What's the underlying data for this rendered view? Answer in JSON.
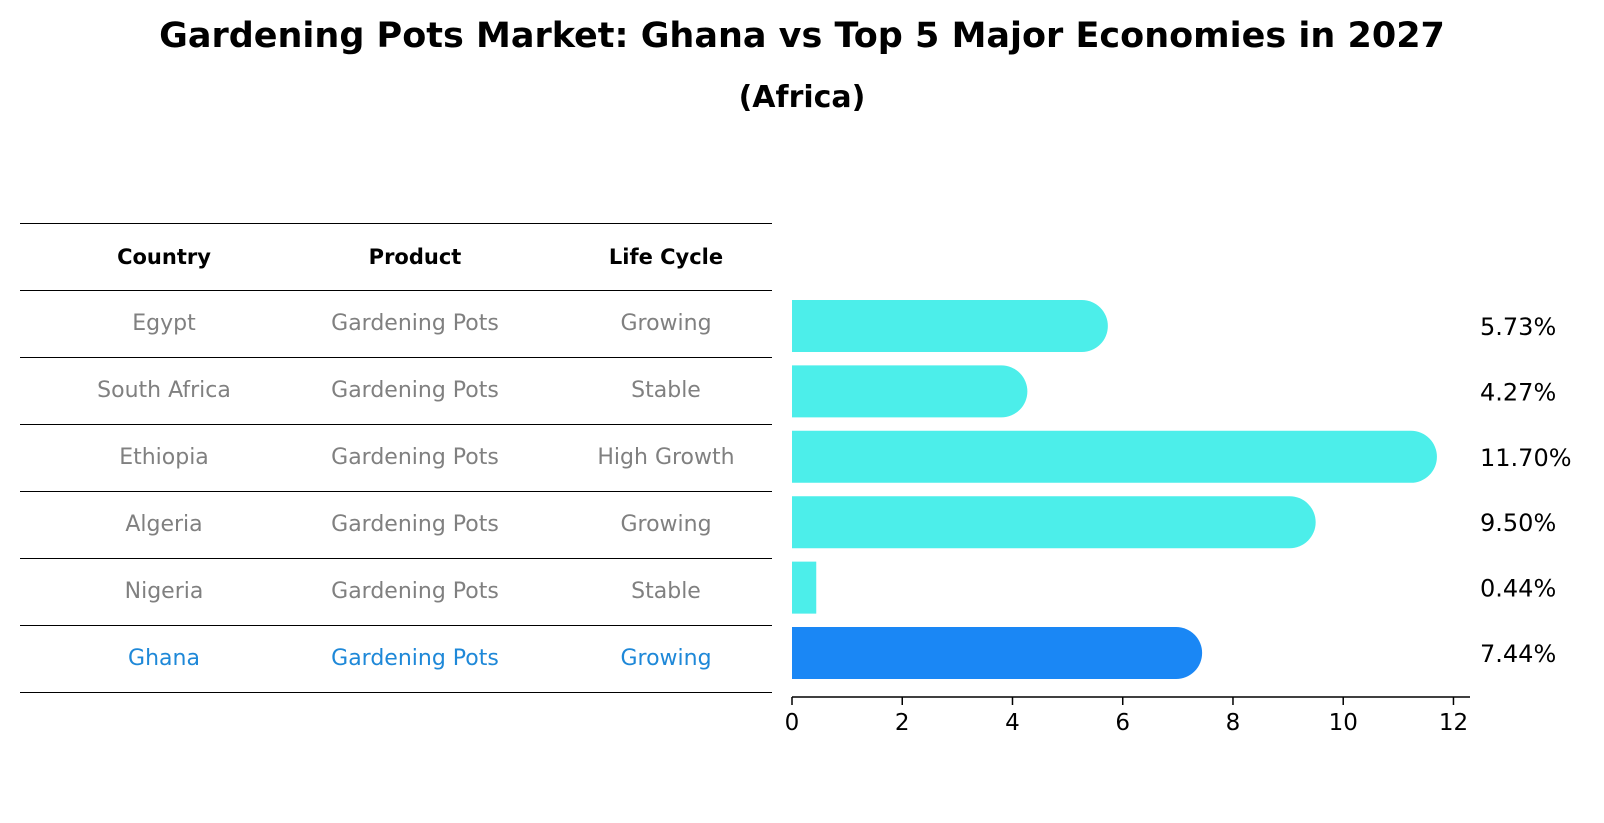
{
  "title": "Gardening Pots Market: Ghana vs Top 5 Major Economies in 2027",
  "subtitle": "(Africa)",
  "table": {
    "headers": [
      "Country",
      "Product",
      "Life Cycle"
    ],
    "rows": [
      {
        "country": "Egypt",
        "product": "Gardening Pots",
        "life_cycle": "Growing"
      },
      {
        "country": "South Africa",
        "product": "Gardening Pots",
        "life_cycle": "Stable"
      },
      {
        "country": "Ethiopia",
        "product": "Gardening Pots",
        "life_cycle": "High Growth"
      },
      {
        "country": "Algeria",
        "product": "Gardening Pots",
        "life_cycle": "Growing"
      },
      {
        "country": "Nigeria",
        "product": "Gardening Pots",
        "life_cycle": "Stable"
      },
      {
        "country": "Ghana",
        "product": "Gardening Pots",
        "life_cycle": "Growing"
      }
    ]
  },
  "chart_data": {
    "type": "bar",
    "orientation": "horizontal",
    "categories": [
      "Egypt",
      "South Africa",
      "Ethiopia",
      "Algeria",
      "Nigeria",
      "Ghana"
    ],
    "values": [
      5.73,
      4.27,
      11.7,
      9.5,
      0.44,
      7.44
    ],
    "value_labels": [
      "5.73%",
      "4.27%",
      "11.70%",
      "9.50%",
      "0.44%",
      "7.44%"
    ],
    "xlim": [
      0,
      12.3
    ],
    "xticks": [
      0,
      2,
      4,
      6,
      8,
      10,
      12
    ],
    "highlight": "Ghana",
    "colors": {
      "default": "#4ceeea",
      "highlight": "#1a87f5"
    },
    "grid": false
  }
}
